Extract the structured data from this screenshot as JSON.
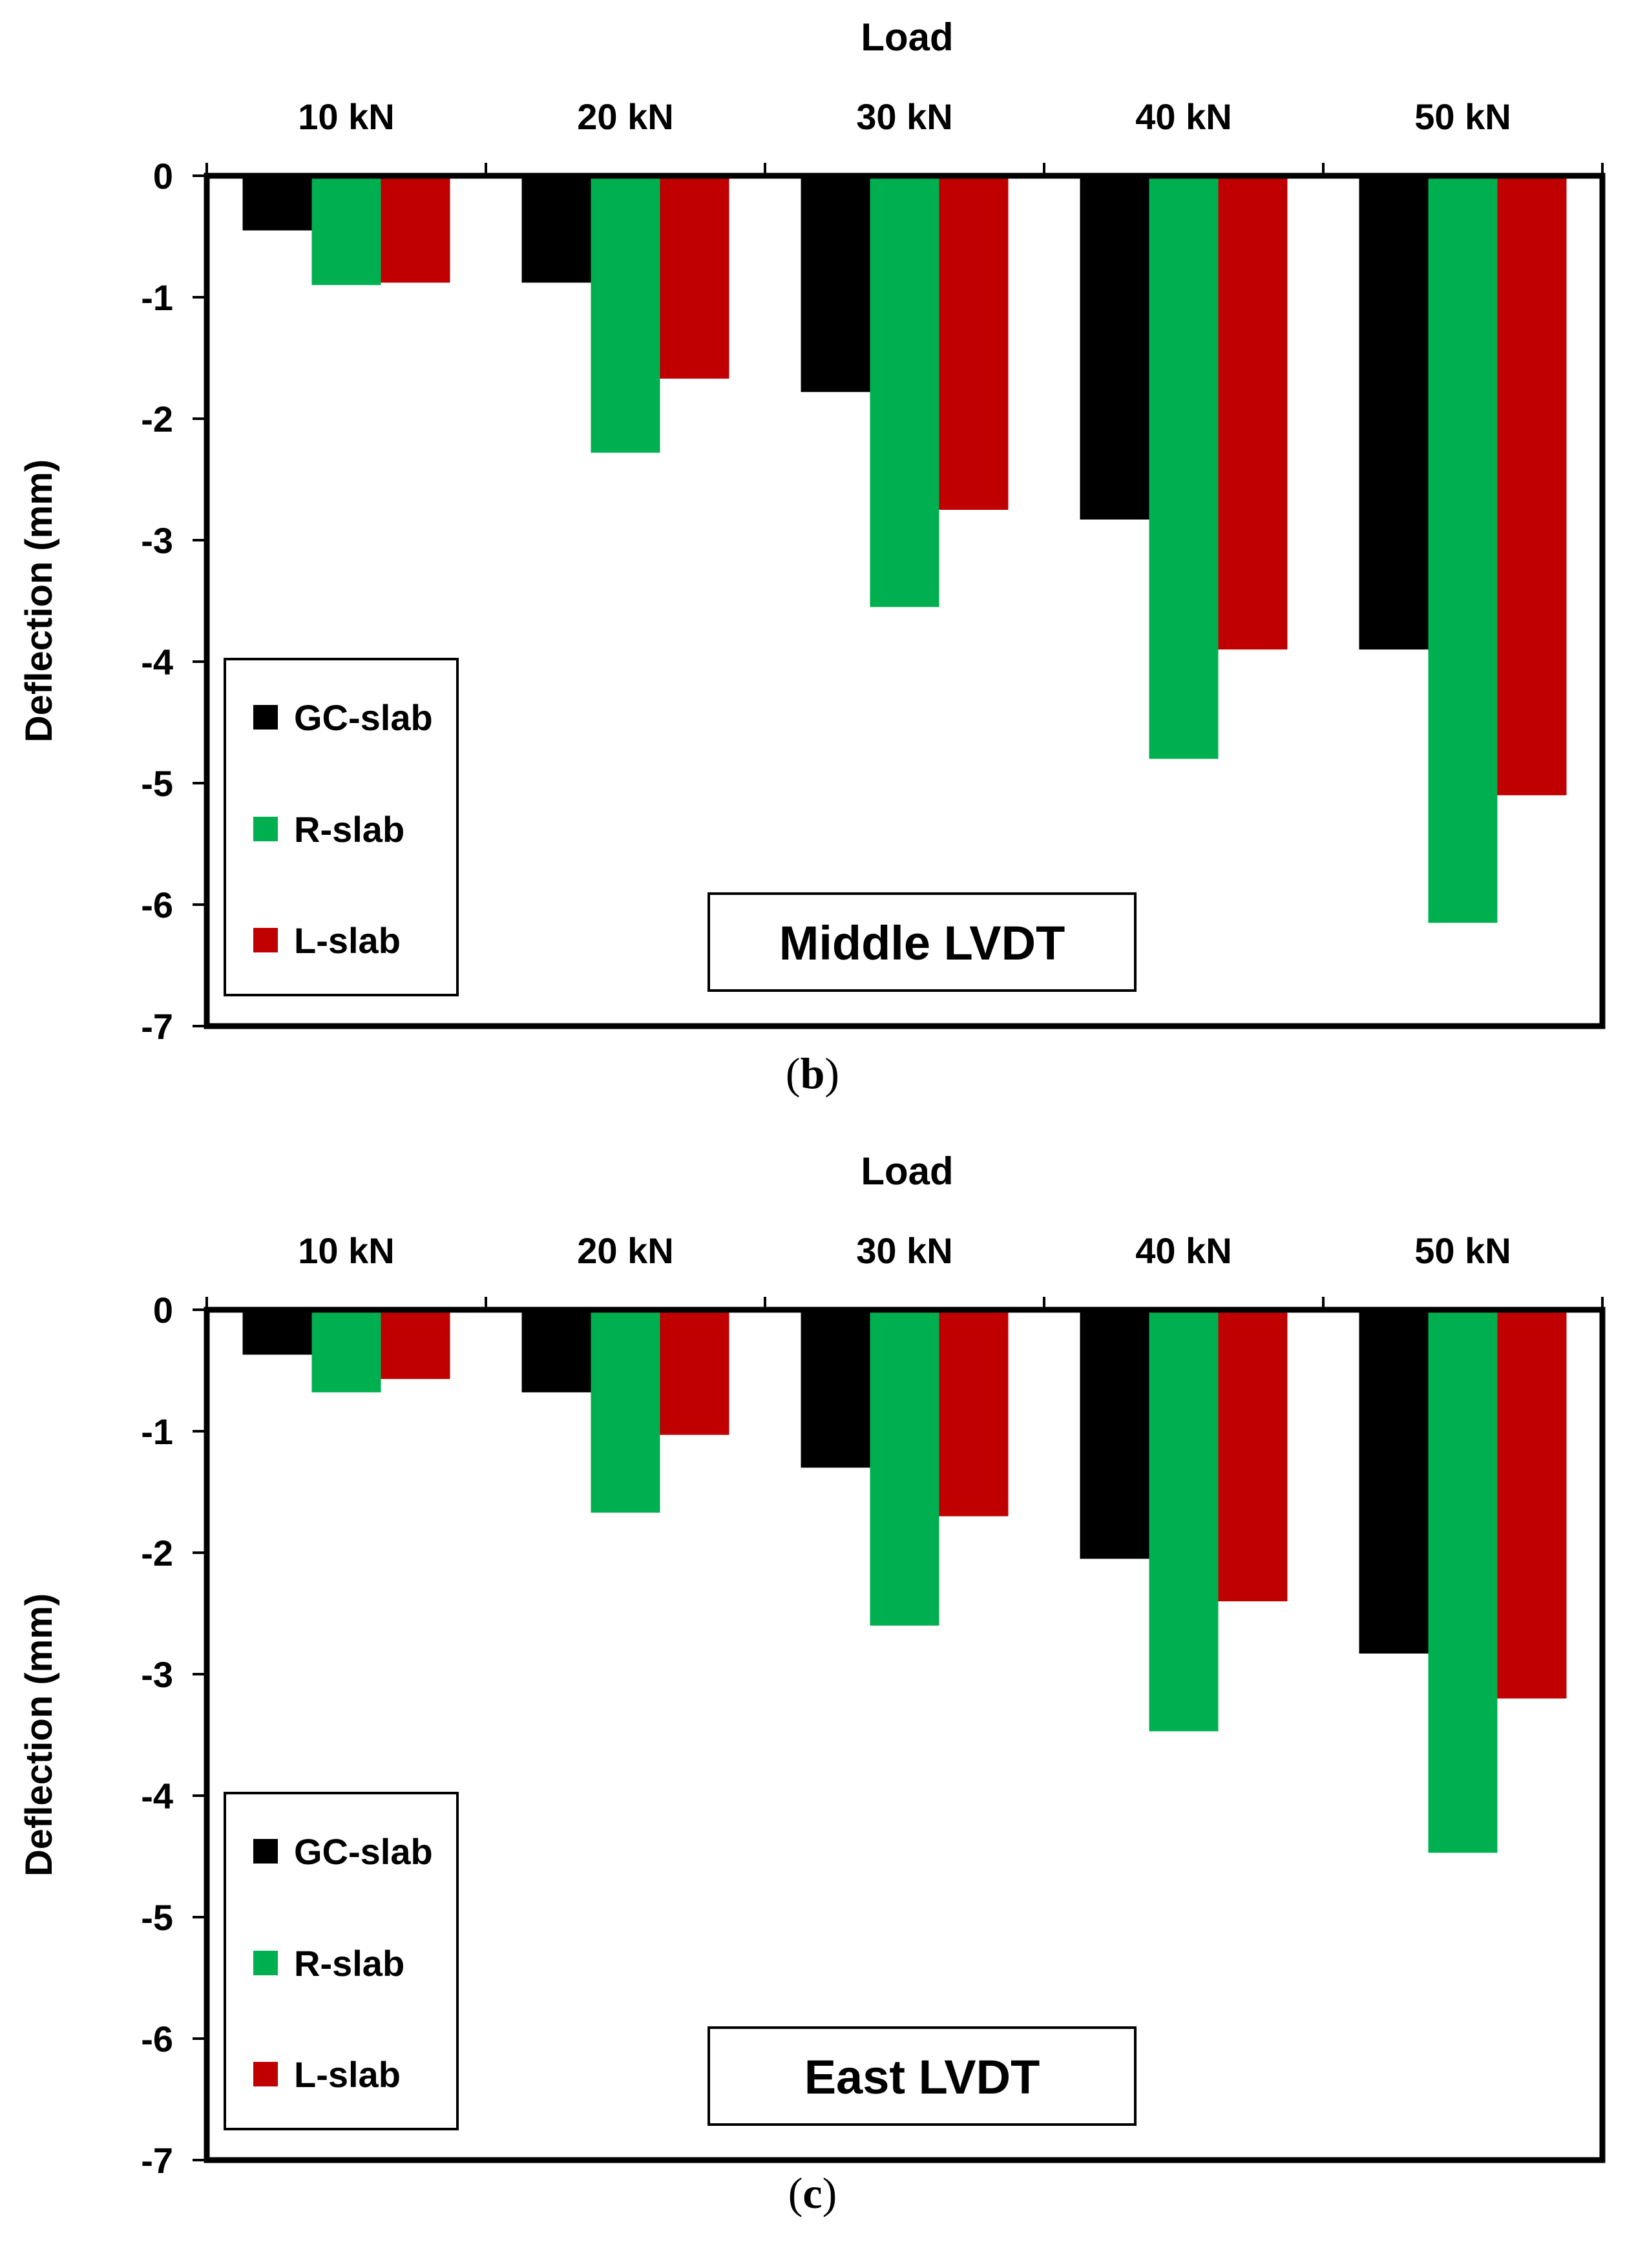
{
  "chart_data": [
    {
      "type": "bar",
      "panel_label": "b",
      "box_label": "Middle LVDT",
      "xlabel": "Load",
      "ylabel": "Deflection (mm)",
      "categories": [
        "10 kN",
        "20 kN",
        "30 kN",
        "40 kN",
        "50 kN"
      ],
      "ylim": [
        -7,
        0
      ],
      "yticks": [
        0,
        -1,
        -2,
        -3,
        -4,
        -5,
        -6,
        -7
      ],
      "x_axis_position": "top",
      "legend_position": "bottom-left",
      "grid": false,
      "series": [
        {
          "name": "GC-slab",
          "color": "#000000",
          "values": [
            -0.45,
            -0.88,
            -1.78,
            -2.83,
            -3.9
          ]
        },
        {
          "name": "R-slab",
          "color": "#00b050",
          "values": [
            -0.9,
            -2.28,
            -3.55,
            -4.8,
            -6.15
          ]
        },
        {
          "name": "L-slab",
          "color": "#c00000",
          "values": [
            -0.88,
            -1.67,
            -2.75,
            -3.9,
            -5.1
          ]
        }
      ]
    },
    {
      "type": "bar",
      "panel_label": "c",
      "box_label": "East LVDT",
      "xlabel": "Load",
      "ylabel": "Deflection (mm)",
      "categories": [
        "10 kN",
        "20 kN",
        "30 kN",
        "40 kN",
        "50 kN"
      ],
      "ylim": [
        -7,
        0
      ],
      "yticks": [
        0,
        -1,
        -2,
        -3,
        -4,
        -5,
        -6,
        -7
      ],
      "x_axis_position": "top",
      "legend_position": "bottom-left",
      "grid": false,
      "series": [
        {
          "name": "GC-slab",
          "color": "#000000",
          "values": [
            -0.37,
            -0.68,
            -1.3,
            -2.05,
            -2.83
          ]
        },
        {
          "name": "R-slab",
          "color": "#00b050",
          "values": [
            -0.68,
            -1.67,
            -2.6,
            -3.47,
            -4.47
          ]
        },
        {
          "name": "L-slab",
          "color": "#c00000",
          "values": [
            -0.57,
            -1.03,
            -1.7,
            -2.4,
            -3.2
          ]
        }
      ]
    }
  ]
}
